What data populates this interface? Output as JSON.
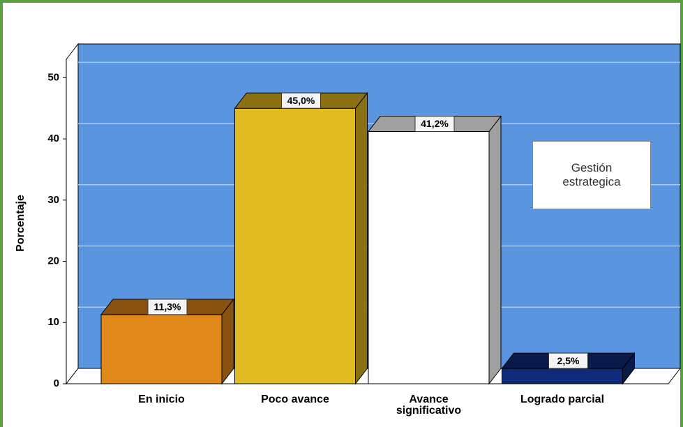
{
  "chart_data": {
    "type": "bar3d",
    "categories": [
      "En inicio",
      "Poco avance",
      "Avance significativo",
      "Logrado parcial"
    ],
    "values": [
      11.3,
      45.0,
      41.2,
      2.5
    ],
    "value_labels": [
      "11,3%",
      "45,0%",
      "41,2%",
      "2,5%"
    ],
    "colors": [
      "#e0891a",
      "#e0bb22",
      "#ffffff",
      "#102a7a"
    ],
    "side_colors": [
      "#8a5210",
      "#8a7214",
      "#a0a0a0",
      "#0a1a4a"
    ],
    "ylabel": "Porcentaje",
    "legend_text": "Gestión estrategica",
    "ylim": [
      0,
      53
    ],
    "yticks": [
      0,
      10,
      20,
      30,
      40,
      50
    ],
    "grid": true
  }
}
